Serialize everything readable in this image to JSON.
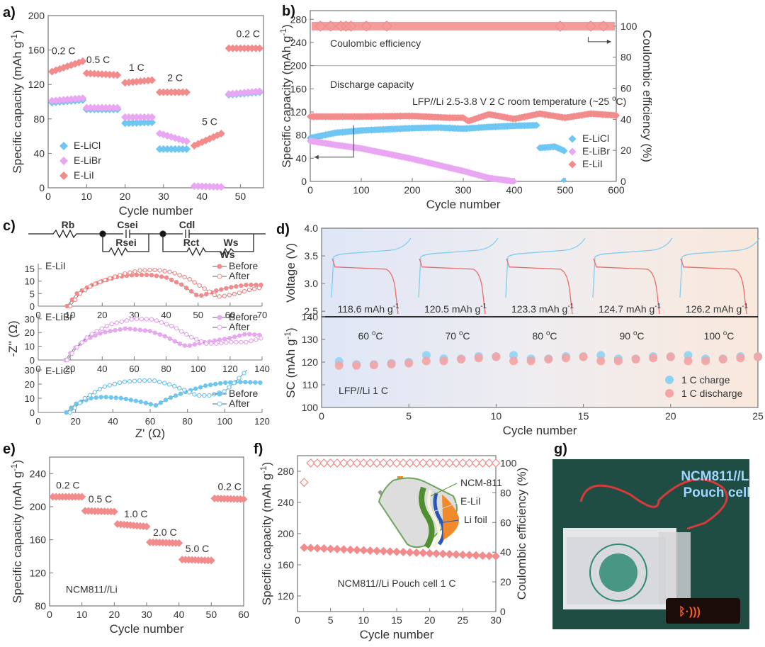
{
  "colors": {
    "licl": "#6ec6f3",
    "libr": "#e9a6f2",
    "lii": "#f28b8b",
    "charge": "#8fd3f4",
    "discharge": "#f5a3a3"
  },
  "chart_data": [
    {
      "id": "a",
      "label": "a)",
      "type": "scatter",
      "title": "",
      "xlabel": "Cycle number",
      "ylabel": "Specific capacity (mAh g-1)",
      "xlim": [
        0,
        56
      ],
      "ylim": [
        0,
        200
      ],
      "xticks": [
        0,
        10,
        20,
        30,
        40,
        50
      ],
      "yticks": [
        0,
        40,
        80,
        120,
        160,
        200
      ],
      "legend": {
        "position": "bottom-left",
        "entries": [
          "E-LiCl",
          "E-LiBr",
          "E-LiI"
        ]
      },
      "annotations": [
        {
          "text": "0.2 C",
          "x": 4,
          "y": 155
        },
        {
          "text": "0.5 C",
          "x": 13,
          "y": 145
        },
        {
          "text": "1 C",
          "x": 23,
          "y": 136
        },
        {
          "text": "2 C",
          "x": 33,
          "y": 124
        },
        {
          "text": "5 C",
          "x": 42,
          "y": 73
        },
        {
          "text": "0.2 C",
          "x": 52,
          "y": 175
        }
      ],
      "series": [
        {
          "name": "E-LiCl",
          "color_key": "licl",
          "segments": [
            {
              "x0": 1,
              "x1": 9,
              "y0": 99,
              "y1": 102
            },
            {
              "x0": 10,
              "x1": 18,
              "y0": 91,
              "y1": 91
            },
            {
              "x0": 20,
              "x1": 27,
              "y0": 75,
              "y1": 76
            },
            {
              "x0": 29,
              "x1": 36,
              "y0": 45,
              "y1": 45
            },
            {
              "x0": 47,
              "x1": 55,
              "y0": 108,
              "y1": 111
            }
          ]
        },
        {
          "name": "E-LiBr",
          "color_key": "libr",
          "segments": [
            {
              "x0": 1,
              "x1": 9,
              "y0": 101,
              "y1": 104
            },
            {
              "x0": 10,
              "x1": 18,
              "y0": 93,
              "y1": 93
            },
            {
              "x0": 20,
              "x1": 27,
              "y0": 82,
              "y1": 82
            },
            {
              "x0": 29,
              "x1": 36,
              "y0": 63,
              "y1": 54
            },
            {
              "x0": 38,
              "x1": 45,
              "y0": 2,
              "y1": 1
            },
            {
              "x0": 47,
              "x1": 55,
              "y0": 109,
              "y1": 112
            }
          ]
        },
        {
          "name": "E-LiI",
          "color_key": "lii",
          "segments": [
            {
              "x0": 1,
              "x1": 9,
              "y0": 135,
              "y1": 147
            },
            {
              "x0": 10,
              "x1": 18,
              "y0": 133,
              "y1": 131
            },
            {
              "x0": 20,
              "x1": 27,
              "y0": 122,
              "y1": 125
            },
            {
              "x0": 29,
              "x1": 36,
              "y0": 111,
              "y1": 111
            },
            {
              "x0": 38,
              "x1": 45,
              "y0": 49,
              "y1": 63
            },
            {
              "x0": 47,
              "x1": 55,
              "y0": 162,
              "y1": 162
            }
          ]
        }
      ]
    },
    {
      "id": "b",
      "label": "b)",
      "type": "scatter",
      "title": "",
      "xlabel": "Cycle number",
      "ylabel": "Specific capacity (mAh g-1)",
      "y2label": "Coulombic efficiency (%)",
      "xlim": [
        0,
        600
      ],
      "ylim": [
        0,
        295
      ],
      "y2lim": [
        0,
        110
      ],
      "xticks": [
        0,
        100,
        200,
        300,
        400,
        500,
        600
      ],
      "yticks": [
        0,
        40,
        80,
        120,
        160,
        200,
        240,
        280
      ],
      "y2ticks": [
        0,
        20,
        40,
        60,
        80,
        100
      ],
      "split_y": 200,
      "legend": {
        "position": "bottom-right",
        "entries": [
          "E-LiCl",
          "E-LiBr",
          "E-LiI"
        ]
      },
      "annotations": [
        {
          "text": "Coulombic efficiency",
          "x": 8,
          "y": 250
        },
        {
          "text": "Discharge capacity",
          "x": 8,
          "y": 180
        },
        {
          "text": "LFP//Li    2.5-3.8 V   2 C   room temperature (~25 oC)",
          "x": 145,
          "y": 150
        }
      ],
      "series": [
        {
          "name": "E-LiI CE",
          "axis": "y2",
          "color_key": "lii",
          "x": [
            0,
            600
          ],
          "y": [
            100,
            100
          ]
        },
        {
          "name": "E-LiI",
          "color_key": "lii",
          "x": [
            0,
            100,
            200,
            270,
            300,
            310,
            350,
            400,
            450,
            500,
            550,
            600
          ],
          "y": [
            112,
            112,
            113,
            110,
            110,
            104,
            116,
            108,
            117,
            110,
            117,
            114
          ]
        },
        {
          "name": "E-LiCl",
          "color_key": "licl",
          "x": [
            0,
            50,
            100,
            200,
            250,
            300,
            350,
            400,
            445,
            450,
            480,
            500
          ],
          "y": [
            75,
            84,
            88,
            92,
            93,
            91,
            94,
            96,
            97,
            58,
            60,
            52
          ]
        },
        {
          "name": "E-LiBr",
          "color_key": "libr",
          "x": [
            0,
            50,
            100,
            200,
            300,
            350,
            400
          ],
          "y": [
            70,
            63,
            57,
            39,
            18,
            6,
            0
          ]
        }
      ]
    },
    {
      "id": "c",
      "label": "c)",
      "type": "line",
      "title": "",
      "xlabel": "Z' (Ω)",
      "ylabel": "-Z'' (Ω)",
      "circuit": [
        "Rb",
        "Csei",
        "Rsei",
        "Cdl",
        "Rct",
        "Ws"
      ],
      "subplots": [
        {
          "name": "E-LiI",
          "xlim": [
            0,
            70
          ],
          "ylim": [
            0,
            17
          ],
          "xticks": [
            0,
            10,
            20,
            30,
            40,
            50,
            60,
            70
          ],
          "yticks": [
            0,
            5,
            10,
            15
          ],
          "legend": [
            "Before",
            "After"
          ],
          "series": [
            {
              "name": "Before",
              "filled": true,
              "x": [
                9,
                12,
                16,
                20,
                25,
                30,
                35,
                40,
                45,
                50,
                52,
                55,
                60,
                65,
                70
              ],
              "y": [
                0,
                5,
                8,
                10,
                11.8,
                12.5,
                12.5,
                11.5,
                8.5,
                4,
                4.5,
                6,
                7.5,
                8.5,
                8.5
              ]
            },
            {
              "name": "After",
              "filled": false,
              "x": [
                10,
                13,
                17,
                22,
                27,
                32,
                37,
                42,
                47,
                52,
                56,
                58,
                62,
                66,
                70
              ],
              "y": [
                0,
                5,
                8.5,
                11,
                13,
                14.3,
                14.5,
                13.5,
                11,
                7,
                3.8,
                4,
                5,
                6.5,
                7.5
              ]
            }
          ]
        },
        {
          "name": "E-LiBr",
          "xlim": [
            0,
            140
          ],
          "ylim": [
            0,
            33
          ],
          "xticks": [
            0,
            20,
            40,
            60,
            80,
            100,
            120,
            140
          ],
          "yticks": [
            0,
            10,
            20,
            30
          ],
          "legend": [
            "Before",
            "After"
          ],
          "series": [
            {
              "name": "Before",
              "filled": true,
              "x": [
                17,
                22,
                30,
                40,
                55,
                70,
                80,
                88,
                93,
                100,
                110,
                120,
                130,
                140
              ],
              "y": [
                0,
                8,
                15,
                20,
                23,
                21,
                17,
                12,
                10,
                12,
                14,
                16,
                19,
                18
              ]
            },
            {
              "name": "After",
              "filled": false,
              "x": [
                18,
                24,
                32,
                45,
                60,
                72,
                85,
                95,
                105,
                112,
                120,
                130,
                140
              ],
              "y": [
                0,
                9,
                18,
                26,
                30,
                29.5,
                24,
                17,
                12,
                12,
                13,
                13,
                16
              ]
            }
          ]
        },
        {
          "name": "E-LiCl",
          "xlim": [
            0,
            120
          ],
          "ylim": [
            0,
            31
          ],
          "xticks": [
            0,
            20,
            40,
            60,
            80,
            100,
            120
          ],
          "yticks": [
            0,
            10,
            20,
            30
          ],
          "legend": [
            "Before",
            "After"
          ],
          "series": [
            {
              "name": "Before",
              "filled": true,
              "x": [
                15,
                20,
                28,
                35,
                45,
                55,
                63,
                70,
                80,
                90,
                100,
                110,
                120
              ],
              "y": [
                0,
                6,
                10,
                11,
                10,
                7.5,
                5,
                10,
                15,
                19,
                21,
                21.5,
                21
              ]
            },
            {
              "name": "After",
              "filled": false,
              "x": [
                17,
                25,
                35,
                45,
                55,
                62,
                70,
                78,
                85,
                92,
                100,
                106,
                112
              ],
              "y": [
                0,
                10,
                18,
                21.5,
                22.5,
                22.5,
                20,
                16,
                12,
                12,
                15,
                22,
                30
              ]
            }
          ]
        }
      ]
    },
    {
      "id": "d",
      "label": "d)",
      "type": "scatter",
      "title": "",
      "xlabel": "Cycle number",
      "ylabel_top": "Voltage (V)",
      "ylabel": "SC (mAh g-1)",
      "xlim": [
        0,
        25
      ],
      "ylim": [
        100,
        140
      ],
      "top_ylim": [
        2.4,
        4.0
      ],
      "xticks": [
        0,
        5,
        10,
        15,
        20,
        25
      ],
      "yticks": [
        100,
        110,
        120,
        130,
        140
      ],
      "top_yticks": [
        2.5,
        3.0,
        3.5,
        4.0
      ],
      "capacities": [
        "118.6 mAh g-1",
        "120.5 mAh g-1",
        "123.3 mAh g-1",
        "124.7 mAh g-1",
        "126.2 mAh g-1"
      ],
      "temperatures": [
        "60 oC",
        "70 oC",
        "80 oC",
        "90 oC",
        "100 oC"
      ],
      "annotation": "LFP//Li   1 C",
      "legend": {
        "position": "bottom-right",
        "entries": [
          "1 C charge",
          "1 C discharge"
        ]
      },
      "series": [
        {
          "name": "1 C charge",
          "color_key": "charge",
          "x": [
            1,
            2,
            3,
            4,
            5,
            6,
            7,
            8,
            9,
            10,
            11,
            12,
            13,
            14,
            15,
            16,
            17,
            18,
            19,
            20,
            21,
            22,
            23,
            24,
            25
          ],
          "y": [
            120.3,
            119,
            119,
            119.5,
            120,
            123,
            121.5,
            121.5,
            122.5,
            122.5,
            123,
            121.5,
            121.5,
            122.5,
            122.5,
            123,
            121.5,
            121.5,
            122.5,
            122.5,
            123,
            121.5,
            121.5,
            122.5,
            122.5
          ]
        },
        {
          "name": "1 C discharge",
          "color_key": "discharge",
          "x": [
            1,
            2,
            3,
            4,
            5,
            6,
            7,
            8,
            9,
            10,
            11,
            12,
            13,
            14,
            15,
            16,
            17,
            18,
            19,
            20,
            21,
            22,
            23,
            24,
            25
          ],
          "y": [
            118.5,
            118.5,
            118.7,
            119.1,
            119.5,
            120.5,
            120.5,
            121.3,
            121.8,
            122.3,
            120.5,
            120.5,
            121.3,
            121.8,
            122.3,
            120.5,
            120.5,
            121.3,
            121.8,
            122.3,
            120.5,
            120.5,
            121.3,
            121.8,
            122.3
          ]
        }
      ]
    },
    {
      "id": "e",
      "label": "e)",
      "type": "scatter",
      "title": "",
      "xlabel": "Cycle number",
      "ylabel": "Specific capacity (mAh g-1)",
      "xlim": [
        0,
        60
      ],
      "ylim": [
        80,
        260
      ],
      "xticks": [
        0,
        10,
        20,
        30,
        40,
        50,
        60
      ],
      "yticks": [
        80,
        120,
        160,
        200,
        240
      ],
      "annotations": [
        {
          "text": "0.2 C",
          "x": 2,
          "y": 222
        },
        {
          "text": "0.5 C",
          "x": 12,
          "y": 205
        },
        {
          "text": "1.0 C",
          "x": 23,
          "y": 187
        },
        {
          "text": "2.0 C",
          "x": 32,
          "y": 165
        },
        {
          "text": "5.0 C",
          "x": 42,
          "y": 145
        },
        {
          "text": "0.2 C",
          "x": 52,
          "y": 220
        },
        {
          "text": "NCM811//Li",
          "x": 5,
          "y": 96
        }
      ],
      "series": [
        {
          "name": "NCM811//Li",
          "color_key": "lii",
          "segments": [
            {
              "x0": 1,
              "x1": 10,
              "y0": 212,
              "y1": 212
            },
            {
              "x0": 11,
              "x1": 20,
              "y0": 195,
              "y1": 194
            },
            {
              "x0": 21,
              "x1": 30,
              "y0": 179,
              "y1": 176
            },
            {
              "x0": 31,
              "x1": 40,
              "y0": 157,
              "y1": 156
            },
            {
              "x0": 41,
              "x1": 50,
              "y0": 136,
              "y1": 135
            },
            {
              "x0": 51,
              "x1": 60,
              "y0": 210,
              "y1": 209
            }
          ]
        }
      ]
    },
    {
      "id": "f",
      "label": "f)",
      "type": "scatter",
      "title": "",
      "xlabel": "Cycle number",
      "ylabel": "Specific capacity (mAh g-1)",
      "y2label": "Coulombic efficiency (%)",
      "xlim": [
        0,
        30
      ],
      "ylim": [
        100,
        300
      ],
      "y2lim": [
        0,
        105
      ],
      "xticks": [
        0,
        5,
        10,
        15,
        20,
        25,
        30
      ],
      "yticks": [
        120,
        160,
        200,
        240,
        280
      ],
      "y2ticks": [
        0,
        20,
        40,
        60,
        80,
        100
      ],
      "annotation": "NCM811//Li Pouch cell 1 C",
      "inset_labels": [
        "NCM-811",
        "E-LiI",
        "Li foil"
      ],
      "series": [
        {
          "name": "CE",
          "axis": "y2",
          "filled": false,
          "x": [
            1,
            2,
            30
          ],
          "y": [
            87,
            100,
            100
          ]
        },
        {
          "name": "Capacity",
          "filled": true,
          "x": [
            1,
            30
          ],
          "y": [
            182,
            171
          ]
        }
      ]
    }
  ],
  "photo_g": {
    "label": "g)",
    "caption_line1": "NCM811//Li",
    "caption_line2": "Pouch cell"
  }
}
